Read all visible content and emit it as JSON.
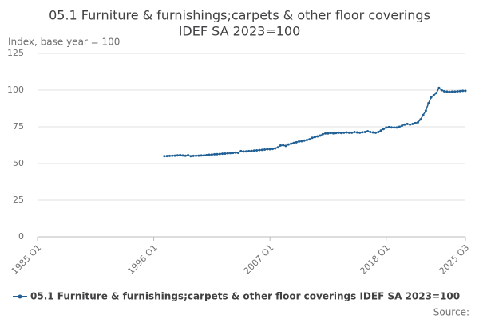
{
  "chart_data": {
    "type": "line",
    "title": [
      "05.1 Furniture & furnishings;carpets & other floor coverings",
      "IDEF SA 2023=100"
    ],
    "y_label": "Index, base year = 100",
    "source": "Source:",
    "categories": [
      "1985 Q1",
      null,
      null,
      null,
      null,
      null,
      null,
      null,
      null,
      null,
      null,
      null,
      null,
      null,
      null,
      null,
      null,
      null,
      null,
      null,
      null,
      null,
      null,
      null,
      null,
      null,
      null,
      null,
      null,
      null,
      null,
      null,
      null,
      null,
      null,
      null,
      null,
      null,
      null,
      null,
      null,
      null,
      null,
      null,
      "1996 Q1",
      null,
      null,
      null,
      null,
      null,
      null,
      null,
      null,
      null,
      null,
      null,
      null,
      null,
      null,
      null,
      null,
      null,
      null,
      null,
      null,
      null,
      null,
      null,
      null,
      null,
      null,
      null,
      null,
      null,
      null,
      null,
      null,
      null,
      null,
      null,
      null,
      null,
      null,
      null,
      null,
      null,
      null,
      null,
      "2007 Q1",
      null,
      null,
      null,
      null,
      null,
      null,
      null,
      null,
      null,
      null,
      null,
      null,
      null,
      null,
      null,
      null,
      null,
      null,
      null,
      null,
      null,
      null,
      null,
      null,
      null,
      null,
      null,
      null,
      null,
      null,
      null,
      null,
      null,
      null,
      null,
      null,
      null,
      null,
      null,
      null,
      null,
      null,
      null,
      "2018 Q1",
      null,
      null,
      null,
      null,
      null,
      null,
      null,
      null,
      null,
      null,
      null,
      null,
      null,
      null,
      null,
      null,
      null,
      null,
      null,
      null,
      null,
      null,
      null,
      null,
      null,
      null,
      null,
      null,
      null,
      "2025 Q3"
    ],
    "series": [
      {
        "name": "05.1 Furniture & furnishings;carpets & other floor coverings IDEF SA 2023=100",
        "color": "#206095",
        "values": [
          null,
          null,
          null,
          null,
          null,
          null,
          null,
          null,
          null,
          null,
          null,
          null,
          null,
          null,
          null,
          null,
          null,
          null,
          null,
          null,
          null,
          null,
          null,
          null,
          null,
          null,
          null,
          null,
          null,
          null,
          null,
          null,
          null,
          null,
          null,
          null,
          null,
          null,
          null,
          null,
          null,
          null,
          null,
          null,
          null,
          null,
          null,
          null,
          55.0,
          55.1,
          55.2,
          55.3,
          55.4,
          55.6,
          55.8,
          55.5,
          55.3,
          55.7,
          55.0,
          55.2,
          55.3,
          55.4,
          55.5,
          55.6,
          55.8,
          56.0,
          56.1,
          56.3,
          56.4,
          56.5,
          56.7,
          56.8,
          57.0,
          57.1,
          57.3,
          57.5,
          57.3,
          58.5,
          58.2,
          58.3,
          58.5,
          58.6,
          58.8,
          59.0,
          59.2,
          59.3,
          59.5,
          59.8,
          59.8,
          60.0,
          60.3,
          61.0,
          62.3,
          62.5,
          62.0,
          63.0,
          63.5,
          64.0,
          64.5,
          65.0,
          65.2,
          65.6,
          66.0,
          66.5,
          67.5,
          68.0,
          68.5,
          69.0,
          70.0,
          70.5,
          70.5,
          70.8,
          70.6,
          70.8,
          71.0,
          70.8,
          71.0,
          71.2,
          71.0,
          71.0,
          71.5,
          71.2,
          71.0,
          71.3,
          71.5,
          72.0,
          71.5,
          71.2,
          71.0,
          71.5,
          72.5,
          73.5,
          74.5,
          74.8,
          74.6,
          74.5,
          74.5,
          75.0,
          75.8,
          76.5,
          77.0,
          76.5,
          77.0,
          77.5,
          78.0,
          80.0,
          83.0,
          86.0,
          91.0,
          95.0,
          96.5,
          98.0,
          101.5,
          100.0,
          99.2,
          99.0,
          98.8,
          99.0,
          99.0,
          99.2,
          99.3,
          99.5,
          99.5
        ]
      }
    ],
    "ylim": [
      0,
      125
    ],
    "yticks": [
      0,
      25,
      50,
      75,
      100,
      125
    ],
    "grid": true
  }
}
